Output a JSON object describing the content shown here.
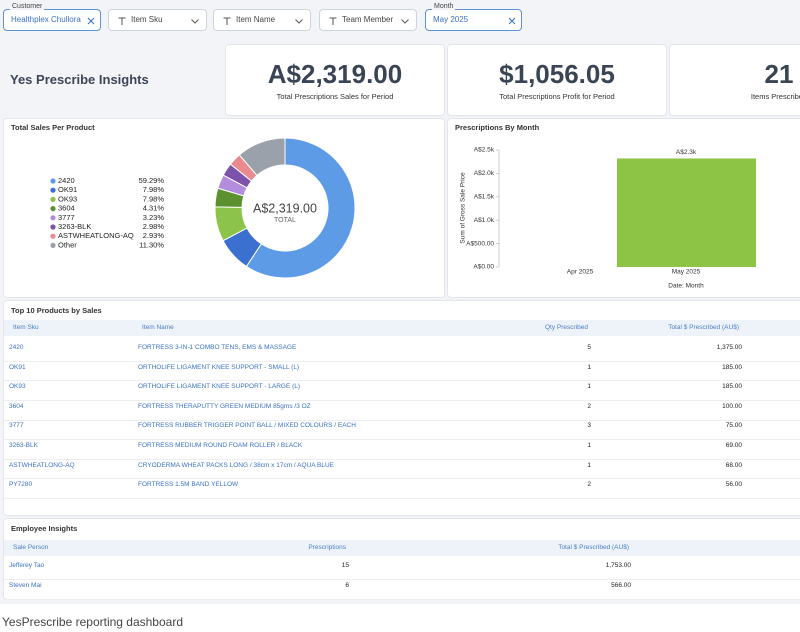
{
  "filters": [
    {
      "label": "Customer",
      "value": "Healthplex Chullora"
    },
    {
      "label": "Item Sku"
    },
    {
      "label": "Item Name"
    },
    {
      "label": "Team Member"
    },
    {
      "label": "Month",
      "value": "May 2025"
    }
  ],
  "header": {
    "title": "Yes Prescribe Insights"
  },
  "kpis": [
    {
      "value": "A$2,319.00",
      "label": "Total Prescriptions Sales for Period"
    },
    {
      "value": "$1,056.05",
      "label": "Total Prescriptions Profit for Period"
    },
    {
      "value": "21",
      "label": "Items Prescribed"
    }
  ],
  "sales_chart": {
    "type": "pie",
    "title": "Total Sales Per Product",
    "categories": [
      "2420",
      "OK91",
      "OK93",
      "3604",
      "3777",
      "3263-BLK",
      "ASTWHEATLONG-AQ",
      "Other"
    ],
    "values": [
      59.29,
      7.98,
      7.98,
      4.31,
      3.23,
      2.98,
      2.93,
      11.3
    ],
    "value_labels": [
      "59.29%",
      "7.98%",
      "7.98%",
      "4.31%",
      "3.23%",
      "2.98%",
      "2.93%",
      "11.30%"
    ],
    "colors": [
      "#5e9be6",
      "#3b70d1",
      "#8cc44b",
      "#5c9130",
      "#b38ddb",
      "#7c52ab",
      "#e98b8e",
      "#9aa1ab"
    ],
    "center_value": "A$2,319.00",
    "center_label": "TOTAL"
  },
  "month_chart": {
    "type": "bar",
    "title": "Prescriptions By Month",
    "x_label": "Date: Month",
    "y_label": "Sum of Gross Sale Price",
    "categories": [
      "Apr 2025",
      "May 2025"
    ],
    "values": [
      null,
      2319
    ],
    "value_labels": [
      null,
      "A$2.3k"
    ],
    "color": "#8dc445",
    "ylim": [
      0,
      2500
    ],
    "yticks": [
      {
        "value": 0,
        "label": "A$0.00"
      },
      {
        "value": 500,
        "label": "A$500.00"
      },
      {
        "value": 1000,
        "label": "A$1.0k"
      },
      {
        "value": 1500,
        "label": "A$1.5k"
      },
      {
        "value": 2000,
        "label": "A$2.0k"
      },
      {
        "value": 2500,
        "label": "A$2.5k"
      }
    ]
  },
  "products_table": {
    "title": "Top 10 Products by Sales",
    "columns": [
      "Item Sku",
      "Item Name",
      "Qty Prescribed",
      "Total $ Prescribed (AU$)"
    ],
    "rows": [
      [
        "2420",
        "FORTRESS 3-IN-1 COMBO TENS, EMS & MASSAGE",
        5,
        "1,375.00"
      ],
      [
        "OK91",
        "ORTHOLIFE LIGAMENT KNEE SUPPORT - SMALL (L)",
        1,
        "185.00"
      ],
      [
        "OK93",
        "ORTHOLIFE LIGAMENT KNEE SUPPORT - LARGE (L)",
        1,
        "185.00"
      ],
      [
        "3604",
        "FORTRESS THERAPUTTY GREEN MEDIUM 85gms /3 OZ",
        2,
        "100.00"
      ],
      [
        "3777",
        "FORTRESS RUBBER TRIGGER POINT BALL / MIXED COLOURS / EACH",
        3,
        "75.00"
      ],
      [
        "3263-BLK",
        "FORTRESS MEDIUM ROUND FOAM ROLLER / BLACK",
        1,
        "69.00"
      ],
      [
        "ASTWHEATLONG-AQ",
        "CRYODERMA WHEAT PACKS LONG / 38cm x 17cm / AQUA BLUE",
        1,
        "68.00"
      ],
      [
        "PY7280",
        "FORTRESS 1.5M BAND YELLOW",
        2,
        "56.00"
      ]
    ]
  },
  "employee_table": {
    "title": "Employee Insights",
    "columns": [
      "Sale Person",
      "Prescriptions",
      "Total $ Prescribed (AU$)"
    ],
    "rows": [
      [
        "Jefferey Tao",
        15,
        "1,753.00"
      ],
      [
        "Steven Mai",
        6,
        "566.00"
      ]
    ]
  },
  "caption": "YesPrescribe reporting dashboard"
}
